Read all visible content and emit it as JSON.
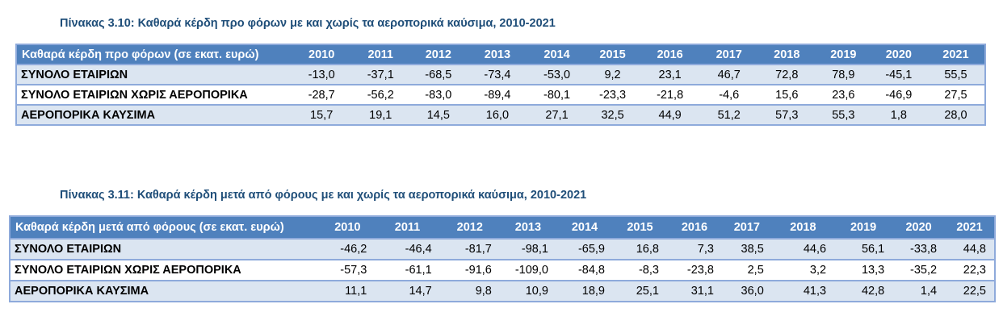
{
  "table1": {
    "caption": "Πίνακας 3.10: Καθαρά κέρδη προ φόρων με και χωρίς τα αεροπορικά καύσιμα, 2010-2021",
    "header": "Καθαρά κέρδη προ φόρων (σε εκατ. ευρώ)",
    "years": [
      "2010",
      "2011",
      "2012",
      "2013",
      "2014",
      "2015",
      "2016",
      "2017",
      "2018",
      "2019",
      "2020",
      "2021"
    ],
    "rows": [
      {
        "label": "ΣΥΝΟΛΟ ΕΤΑΙΡΙΩΝ",
        "values": [
          "-13,0",
          "-37,1",
          "-68,5",
          "-73,4",
          "-53,0",
          "9,2",
          "23,1",
          "46,7",
          "72,8",
          "78,9",
          "-45,1",
          "55,5"
        ]
      },
      {
        "label": "ΣΥΝΟΛΟ ΕΤΑΙΡΙΩΝ ΧΩΡΙΣ ΑΕΡΟΠΟΡΙΚΑ",
        "values": [
          "-28,7",
          "-56,2",
          "-83,0",
          "-89,4",
          "-80,1",
          "-23,3",
          "-21,8",
          "-4,6",
          "15,6",
          "23,6",
          "-46,9",
          "27,5"
        ]
      },
      {
        "label": "ΑΕΡΟΠΟΡΙΚΑ ΚΑΥΣΙΜΑ",
        "values": [
          "15,7",
          "19,1",
          "14,5",
          "16,0",
          "27,1",
          "32,5",
          "44,9",
          "51,2",
          "57,3",
          "55,3",
          "1,8",
          "28,0"
        ]
      }
    ]
  },
  "table2": {
    "caption": "Πίνακας 3.11: Καθαρά κέρδη μετά από φόρους με και χωρίς τα αεροπορικά καύσιμα, 2010-2021",
    "header": "Καθαρά κέρδη μετά από φόρους (σε εκατ. ευρώ)",
    "years": [
      "2010",
      "2011",
      "2012",
      "2013",
      "2014",
      "2015",
      "2016",
      "2017",
      "2018",
      "2019",
      "2020",
      "2021"
    ],
    "rows": [
      {
        "label": "ΣΥΝΟΛΟ ΕΤΑΙΡΙΩΝ",
        "values": [
          "-46,2",
          "-46,4",
          "-81,7",
          "-98,1",
          "-65,9",
          "16,8",
          "7,3",
          "38,5",
          "44,6",
          "56,1",
          "-33,8",
          "44,8"
        ]
      },
      {
        "label": "ΣΥΝΟΛΟ ΕΤΑΙΡΙΩΝ ΧΩΡΙΣ ΑΕΡΟΠΟΡΙΚΑ",
        "values": [
          "-57,3",
          "-61,1",
          "-91,6",
          "-109,0",
          "-84,8",
          "-8,3",
          "-23,8",
          "2,5",
          "3,2",
          "13,3",
          "-35,2",
          "22,3"
        ]
      },
      {
        "label": "ΑΕΡΟΠΟΡΙΚΑ ΚΑΥΣΙΜΑ",
        "values": [
          "11,1",
          "14,7",
          "9,8",
          "10,9",
          "18,9",
          "25,1",
          "31,1",
          "36,0",
          "41,3",
          "42,8",
          "1,4",
          "22,5"
        ]
      }
    ]
  }
}
